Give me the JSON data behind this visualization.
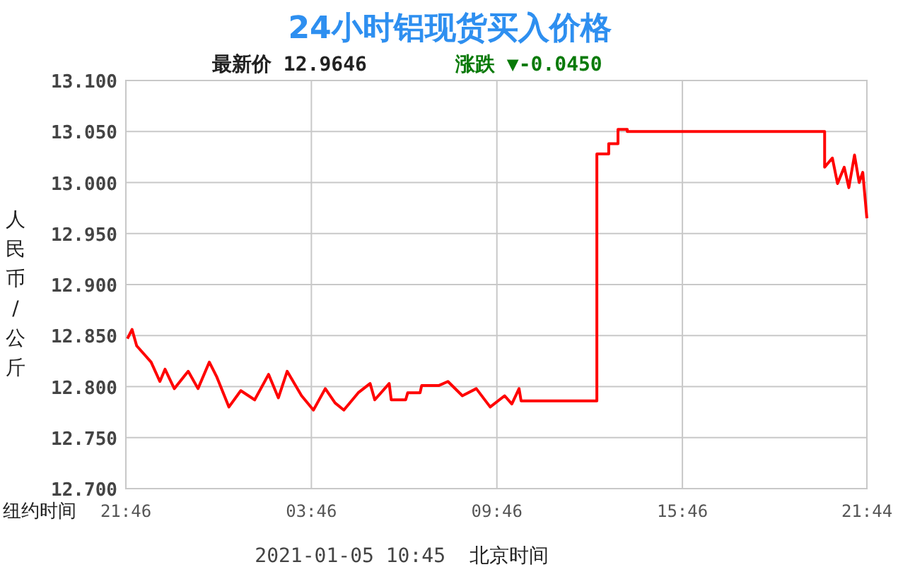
{
  "chart_data": {
    "type": "line",
    "title": "24小时铝现货买入价格",
    "ylabel": "人民币/公斤",
    "xlabel": "纽约时间",
    "annotations": [
      "最新价  12.9646",
      "涨跌 ▼-0.0450",
      "2021-01-05 10:45",
      "北京时间"
    ],
    "xlim": [
      "2021-01-03T21:46",
      "2021-01-04T21:44"
    ],
    "xticks": [
      {
        "value": "2021-01-03T21:46",
        "label": "21:46"
      },
      {
        "value": "2021-01-04T03:46",
        "label": "03:46"
      },
      {
        "value": "2021-01-04T09:46",
        "label": "09:46"
      },
      {
        "value": "2021-01-04T15:46",
        "label": "15:46"
      },
      {
        "value": "2021-01-04T21:44",
        "label": "21:44"
      }
    ],
    "ylim": [
      12.7,
      13.1
    ],
    "yticks": [
      {
        "value": 12.7,
        "label": "12.700"
      },
      {
        "value": 12.75,
        "label": "12.750"
      },
      {
        "value": 12.8,
        "label": "12.800"
      },
      {
        "value": 12.85,
        "label": "12.850"
      },
      {
        "value": 12.9,
        "label": "12.900"
      },
      {
        "value": 12.95,
        "label": "12.950"
      },
      {
        "value": 13.0,
        "label": "13.000"
      },
      {
        "value": 13.05,
        "label": "13.050"
      },
      {
        "value": 13.1,
        "label": "13.100"
      }
    ],
    "grid": true,
    "series": [
      {
        "color": "#ff0000",
        "x": [
          "2021-01-03T21:49",
          "2021-01-03T21:58",
          "2021-01-03T22:07",
          "2021-01-03T22:35",
          "2021-01-03T22:52",
          "2021-01-03T23:02",
          "2021-01-03T23:20",
          "2021-01-03T23:47",
          "2021-01-04T00:06",
          "2021-01-04T00:28",
          "2021-01-04T00:42",
          "2021-01-04T01:06",
          "2021-01-04T01:29",
          "2021-01-04T01:56",
          "2021-01-04T02:23",
          "2021-01-04T02:42",
          "2021-01-04T02:59",
          "2021-01-04T03:27",
          "2021-01-04T03:50",
          "2021-01-04T04:13",
          "2021-01-04T04:32",
          "2021-01-04T04:49",
          "2021-01-04T05:17",
          "2021-01-04T05:40",
          "2021-01-04T05:49",
          "2021-01-04T06:17",
          "2021-01-04T06:21",
          "2021-01-04T06:49",
          "2021-01-04T06:53",
          "2021-01-04T07:17",
          "2021-01-04T07:20",
          "2021-01-04T07:53",
          "2021-01-04T08:11",
          "2021-01-04T08:39",
          "2021-01-04T09:06",
          "2021-01-04T09:33",
          "2021-01-04T10:01",
          "2021-01-04T10:15",
          "2021-01-04T10:29",
          "2021-01-04T10:33",
          "2021-01-04T13:00",
          "2021-01-04T13:00",
          "2021-01-04T13:23",
          "2021-01-04T13:23",
          "2021-01-04T13:41",
          "2021-01-04T13:41",
          "2021-01-04T13:59",
          "2021-01-04T13:59",
          "2021-01-04T20:22",
          "2021-01-04T20:22",
          "2021-01-04T20:37",
          "2021-01-04T20:47",
          "2021-01-04T21:00",
          "2021-01-04T21:09",
          "2021-01-04T21:20",
          "2021-01-04T21:29",
          "2021-01-04T21:36",
          "2021-01-04T21:44"
        ],
        "values": [
          12.847,
          12.856,
          12.84,
          12.824,
          12.805,
          12.817,
          12.798,
          12.815,
          12.798,
          12.824,
          12.81,
          12.78,
          12.796,
          12.787,
          12.812,
          12.789,
          12.815,
          12.791,
          12.777,
          12.798,
          12.784,
          12.777,
          12.794,
          12.803,
          12.787,
          12.803,
          12.787,
          12.787,
          12.794,
          12.794,
          12.801,
          12.801,
          12.805,
          12.791,
          12.798,
          12.78,
          12.791,
          12.783,
          12.798,
          12.786,
          12.786,
          13.028,
          13.028,
          13.038,
          13.038,
          13.052,
          13.052,
          13.05,
          13.05,
          13.015,
          13.024,
          12.999,
          13.015,
          12.995,
          13.027,
          13.0,
          13.01,
          12.965
        ]
      }
    ]
  }
}
